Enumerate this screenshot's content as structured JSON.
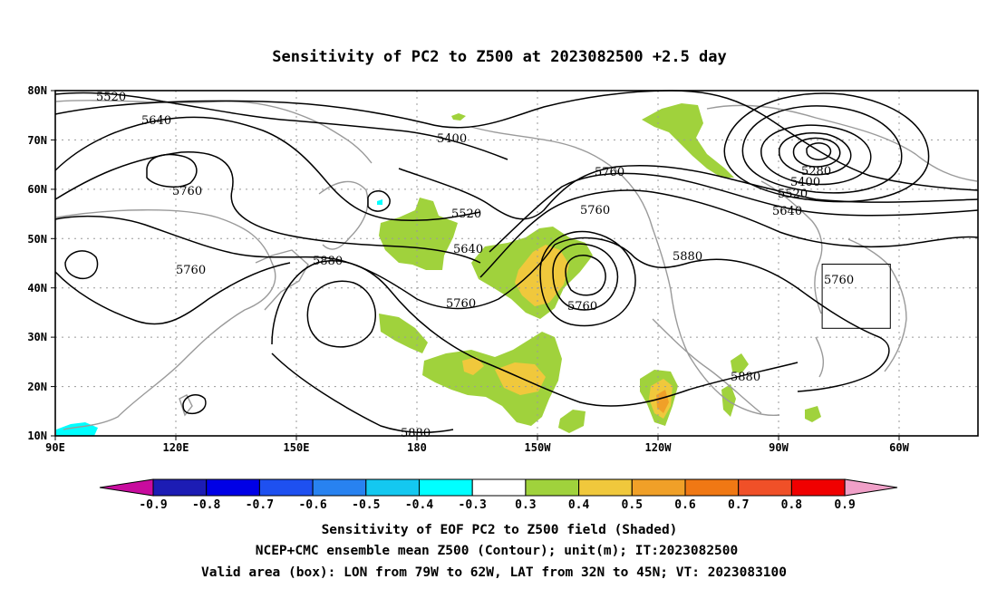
{
  "title": "Sensitivity of PC2 to Z500 at 2023082500 +2.5 day",
  "map": {
    "lon_ticks": [
      "90E",
      "120E",
      "150E",
      "180",
      "150W",
      "120W",
      "90W",
      "60W"
    ],
    "lat_ticks": [
      "80N",
      "70N",
      "60N",
      "50N",
      "40N",
      "30N",
      "20N",
      "10N"
    ],
    "contour_labels": [
      "5520",
      "5640",
      "5760",
      "5760",
      "5400",
      "5520",
      "5640",
      "5760",
      "5880",
      "5760",
      "5760",
      "5760",
      "5280",
      "5400",
      "5520",
      "5640",
      "5880",
      "5760",
      "5880",
      "5880"
    ],
    "valid_box": {
      "lon_west": -79,
      "lon_east": -62,
      "lat_south": 32,
      "lat_north": 45
    }
  },
  "colorbar": {
    "labels": [
      "-0.9",
      "-0.8",
      "-0.7",
      "-0.6",
      "-0.5",
      "-0.4",
      "-0.3",
      "0.3",
      "0.4",
      "0.5",
      "0.6",
      "0.7",
      "0.8",
      "0.9"
    ],
    "colors": [
      "#c80c9e",
      "#1c1cb4",
      "#0000e6",
      "#1e50f0",
      "#2882f0",
      "#14c8f0",
      "#00ffff",
      "#ffffff",
      "#a0d23c",
      "#f0c83c",
      "#f0a028",
      "#f07814",
      "#f05028",
      "#f00000",
      "#f0a0c8"
    ]
  },
  "captions": {
    "line1": "Sensitivity of EOF PC2 to Z500 field (Shaded)",
    "line2": "NCEP+CMC ensemble mean Z500 (Contour); unit(m); IT:2023082500",
    "line3": "Valid area (box): LON from 79W to 62W, LAT from 32N to 45N; VT: 2023083100"
  }
}
